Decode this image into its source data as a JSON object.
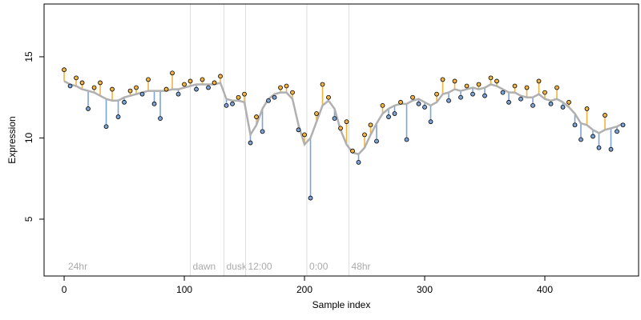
{
  "chart_data": {
    "type": "scatter",
    "xlabel": "Sample index",
    "ylabel": "Expression",
    "xlim": [
      -16.7,
      478
    ],
    "ylim": [
      1.5,
      18.25
    ],
    "xticks": [
      0,
      100,
      200,
      300,
      400
    ],
    "yticks": [
      5,
      10,
      15
    ],
    "above_color": "#f2b441",
    "below_color": "#7ea4d6",
    "fit_color": "#b0b0b0",
    "rule_color": "#dddddd",
    "annotations": [
      {
        "x": 0,
        "label": "24hr",
        "rule": false
      },
      {
        "x": 105,
        "label": "dawn",
        "rule": true
      },
      {
        "x": 133,
        "label": "dusk",
        "rule": true
      },
      {
        "x": 151,
        "label": "12:00",
        "rule": true
      },
      {
        "x": 202,
        "label": "0:00",
        "rule": true
      },
      {
        "x": 237,
        "label": "48hr",
        "rule": true
      }
    ],
    "x": [
      0,
      5,
      10,
      15,
      20,
      25,
      30,
      35,
      40,
      45,
      50,
      55,
      60,
      65,
      70,
      75,
      80,
      85,
      90,
      95,
      100,
      105,
      110,
      115,
      120,
      125,
      130,
      135,
      140,
      145,
      150,
      155,
      160,
      165,
      170,
      175,
      180,
      185,
      190,
      195,
      200,
      205,
      210,
      215,
      220,
      225,
      230,
      235,
      240,
      245,
      250,
      255,
      260,
      265,
      270,
      275,
      280,
      285,
      290,
      295,
      300,
      305,
      310,
      315,
      320,
      325,
      330,
      335,
      340,
      345,
      350,
      355,
      360,
      365,
      370,
      375,
      380,
      385,
      390,
      395,
      400,
      405,
      410,
      415,
      420,
      425,
      430,
      435,
      440,
      445,
      450,
      455,
      460,
      465
    ],
    "values": [
      14.2,
      13.2,
      13.7,
      13.4,
      11.8,
      13.1,
      13.4,
      10.7,
      13.0,
      11.3,
      12.2,
      12.9,
      13.1,
      12.7,
      13.6,
      12.1,
      11.2,
      13.0,
      14.0,
      12.7,
      13.3,
      13.5,
      13.0,
      13.6,
      13.1,
      13.4,
      13.8,
      12.0,
      12.1,
      12.5,
      12.7,
      9.7,
      11.3,
      10.4,
      12.3,
      12.5,
      13.1,
      13.2,
      12.8,
      10.5,
      10.2,
      6.3,
      11.5,
      13.3,
      12.5,
      11.2,
      10.6,
      11.0,
      9.2,
      8.5,
      10.2,
      10.8,
      9.8,
      12.0,
      11.3,
      11.5,
      12.2,
      9.9,
      12.5,
      12.1,
      11.9,
      11.0,
      12.7,
      13.6,
      12.3,
      13.5,
      12.5,
      13.2,
      12.7,
      13.3,
      12.6,
      13.7,
      13.5,
      12.8,
      12.2,
      13.2,
      12.4,
      13.1,
      12.0,
      13.5,
      12.8,
      12.1,
      13.1,
      11.9,
      12.2,
      10.8,
      9.9,
      11.8,
      10.1,
      9.4,
      11.4,
      9.3,
      10.4,
      10.8
    ],
    "fit": [
      13.5,
      13.3,
      13.2,
      13.0,
      12.9,
      12.8,
      12.6,
      12.4,
      12.3,
      12.3,
      12.5,
      12.6,
      12.7,
      12.8,
      12.9,
      12.9,
      12.9,
      12.9,
      13.0,
      13.0,
      13.1,
      13.2,
      13.3,
      13.3,
      13.3,
      13.3,
      13.4,
      12.4,
      12.3,
      12.3,
      12.2,
      10.2,
      10.8,
      11.8,
      12.4,
      12.7,
      12.8,
      12.8,
      12.4,
      10.8,
      9.6,
      10.0,
      11.0,
      12.0,
      12.3,
      11.8,
      10.5,
      9.6,
      9.1,
      9.0,
      9.4,
      10.2,
      10.9,
      11.5,
      11.8,
      12.0,
      12.1,
      12.1,
      12.3,
      12.4,
      12.2,
      12.0,
      12.2,
      12.7,
      12.8,
      13.0,
      12.9,
      13.0,
      13.1,
      13.0,
      13.1,
      13.3,
      13.2,
      13.0,
      12.8,
      12.8,
      12.6,
      12.5,
      12.5,
      12.7,
      12.4,
      12.3,
      12.4,
      12.2,
      11.9,
      11.5,
      10.9,
      10.8,
      10.5,
      10.3,
      10.5,
      10.6,
      10.7,
      10.9
    ]
  }
}
